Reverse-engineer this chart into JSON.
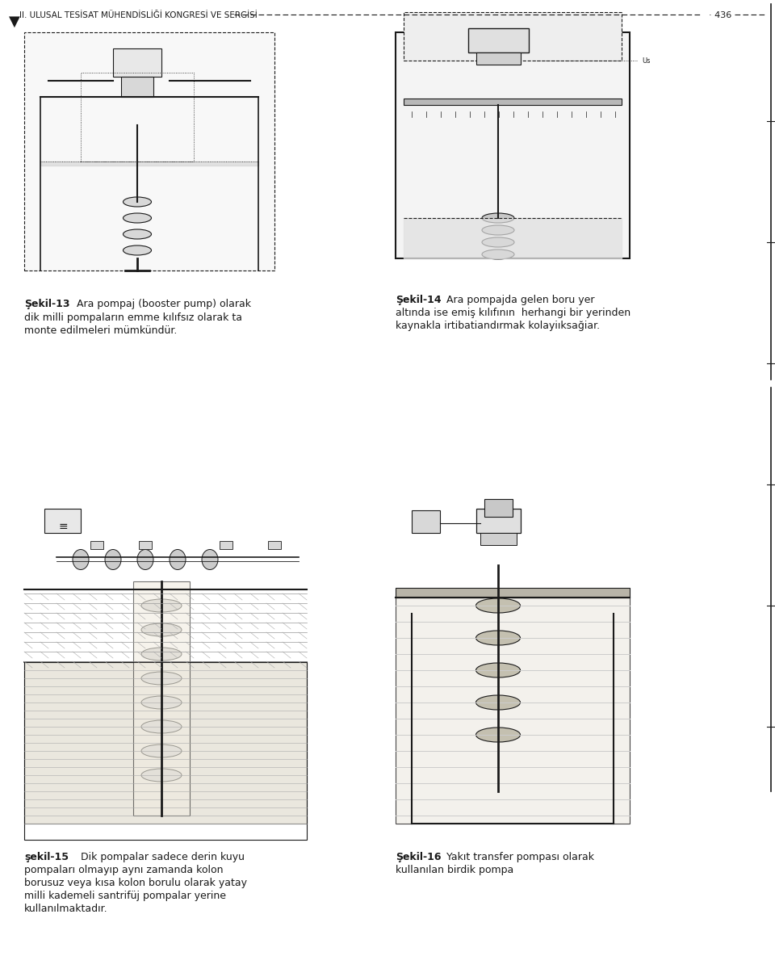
{
  "page_width": 9.6,
  "page_height": 12.05,
  "bg_color": "#ffffff",
  "header_text": "II. ULUSAL TESİSAT MÜHENDİSLİĞİ KONGRESİ VE SERGİSİ",
  "header_page": "436",
  "caption13_title": "Şekil-13",
  "caption13_body": "Ara pompaj (booster pump) olarak\ndik milli pompaların emme kılıfsız olarak ta\nmonte edilmeleri mümkündür.",
  "caption14_title": "Şekil-14",
  "caption14_body": "Ara pompajda gelen boru yer\naltında ise emiş kılıfının  herhangi bir yerinden\nkaynakla irtibatiandırmak kolayiıksağiar.",
  "caption15_title": "şekil-15",
  "caption15_body": "Dik pompalar sadece derin kuyu\npompaları olmayıp aynı zamanda kolon\nborusuz veya kısa kolon borulu olarak yatay\nmilli kademeli santrifüj pompalar yerine\nkullanılmaktadır.",
  "caption16_title": "Şekil-16",
  "caption16_body": "Yakıt transfer pompası olarak\nkullanılan birdik pompa",
  "text_color": "#1a1a1a",
  "line_color": "#1a1a1a"
}
